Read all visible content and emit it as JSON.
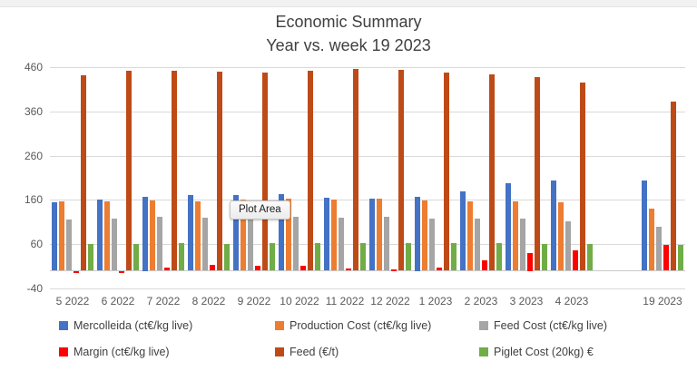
{
  "window": {
    "top_strip_color": "#f1f1f1"
  },
  "title": {
    "line1": "Economic Summary",
    "line2": "Year vs. week 19 2023"
  },
  "tooltip": {
    "text": "Plot Area"
  },
  "colors": {
    "grid": "#d9d9d9",
    "axis_text": "#595959",
    "title_text": "#404040",
    "legend_text": "#3f3f3f"
  },
  "chart_data": {
    "type": "bar",
    "title": "Economic Summary",
    "subtitle": "Year vs. week 19 2023",
    "categories": [
      "5 2022",
      "6 2022",
      "7 2022",
      "8 2022",
      "9 2022",
      "10 2022",
      "11 2022",
      "12 2022",
      "1 2023",
      "2 2023",
      "3 2023",
      "4 2023",
      "19 2023"
    ],
    "gap_before_last_category": true,
    "series": [
      {
        "name": "Mercolleida (ct€/kg live)",
        "color": "#4472C4",
        "values": [
          155,
          160,
          167,
          171,
          172,
          173,
          164,
          163,
          167,
          180,
          198,
          203,
          203
        ]
      },
      {
        "name": "Production Cost (ct€/kg live)",
        "color": "#ED7D31",
        "values": [
          157,
          157,
          158,
          156,
          160,
          162,
          161,
          162,
          158,
          157,
          157,
          154,
          141
        ]
      },
      {
        "name": "Feed Cost (ct€/kg live)",
        "color": "#A5A5A5",
        "values": [
          115,
          118,
          121,
          119,
          118,
          121,
          120,
          121,
          117,
          117,
          117,
          111,
          100
        ]
      },
      {
        "name": "Margin (ct€/kg live)",
        "color": "#FF0000",
        "values": [
          -5,
          -5,
          8,
          13,
          12,
          12,
          5,
          4,
          8,
          23,
          40,
          47,
          59
        ]
      },
      {
        "name": "Feed (€/t)",
        "color": "#BE4B17",
        "values": [
          442,
          451,
          452,
          450,
          447,
          452,
          455,
          454,
          447,
          444,
          438,
          425,
          382
        ]
      },
      {
        "name": "Piglet Cost (20kg) €",
        "color": "#70AD47",
        "values": [
          61,
          61,
          62,
          61,
          62,
          62,
          63,
          62,
          62,
          63,
          61,
          61,
          58
        ]
      }
    ],
    "y_ticks": [
      460,
      360,
      260,
      160,
      60,
      -40
    ],
    "ylim": [
      -40,
      460
    ],
    "grid": true,
    "legend_position": "bottom"
  }
}
